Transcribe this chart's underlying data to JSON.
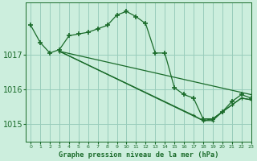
{
  "title": "Graphe pression niveau de la mer (hPa)",
  "bg_color": "#cceedd",
  "grid_color": "#99ccbb",
  "line_color": "#1a6b2a",
  "xlim": [
    -0.5,
    23
  ],
  "ylim": [
    1014.5,
    1018.5
  ],
  "yticks": [
    1015,
    1016,
    1017
  ],
  "xticks": [
    0,
    1,
    2,
    3,
    4,
    5,
    6,
    7,
    8,
    9,
    10,
    11,
    12,
    13,
    14,
    15,
    16,
    17,
    18,
    19,
    20,
    21,
    22,
    23
  ],
  "series": [
    {
      "x": [
        0,
        1,
        2,
        3,
        4,
        5,
        6,
        7,
        8,
        9,
        10,
        11,
        12,
        13,
        14,
        15,
        16,
        17,
        18,
        19,
        20,
        21,
        22,
        23
      ],
      "y": [
        1017.85,
        1017.35,
        1017.05,
        1017.15,
        1017.55,
        1017.6,
        1017.65,
        1017.75,
        1017.85,
        1018.15,
        1018.25,
        1018.1,
        1017.9,
        1017.05,
        1017.05,
        1016.05,
        1015.85,
        1015.75,
        1015.15,
        1015.15,
        1015.35,
        1015.65,
        1015.85,
        1015.75
      ]
    },
    {
      "x": [
        3,
        23
      ],
      "y": [
        1017.1,
        1015.85
      ]
    },
    {
      "x": [
        3,
        18,
        19,
        20,
        21,
        22,
        23
      ],
      "y": [
        1017.1,
        1015.1,
        1015.1,
        1015.35,
        1015.55,
        1015.75,
        1015.7
      ]
    },
    {
      "x": [
        3,
        17,
        18,
        19,
        20,
        21,
        22,
        23
      ],
      "y": [
        1017.1,
        1015.25,
        1015.1,
        1015.15,
        1015.35,
        1015.55,
        1015.75,
        1015.7
      ]
    }
  ]
}
